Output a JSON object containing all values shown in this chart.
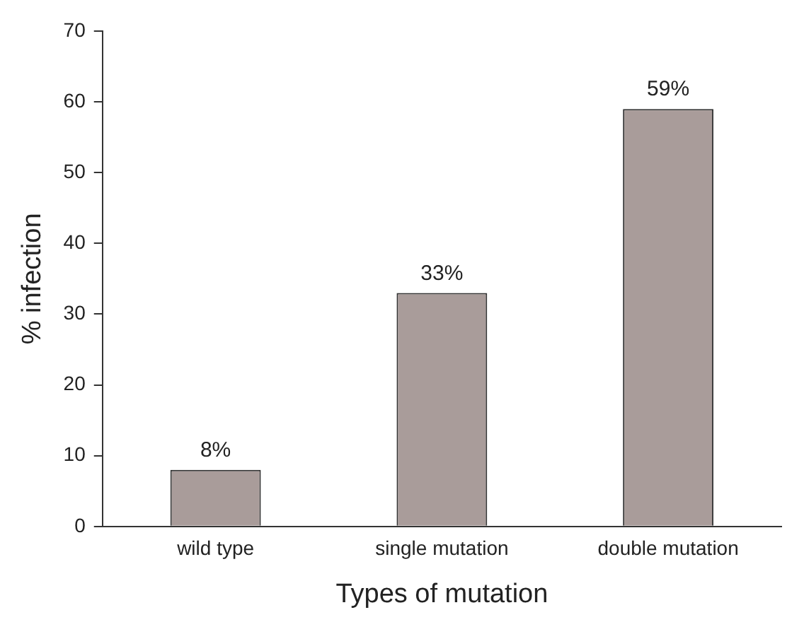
{
  "chart_data": {
    "type": "bar",
    "xlabel": "Types of mutation",
    "ylabel": "% infection",
    "categories": [
      "wild type",
      "single mutation",
      "double mutation"
    ],
    "values": [
      8,
      33,
      59
    ],
    "value_labels": [
      "8%",
      "33%",
      "59%"
    ],
    "color": "#a99c9a",
    "ylim": [
      0,
      70
    ],
    "yticks": [
      0,
      10,
      20,
      30,
      40,
      50,
      60,
      70
    ],
    "grid": false,
    "legend": false
  }
}
